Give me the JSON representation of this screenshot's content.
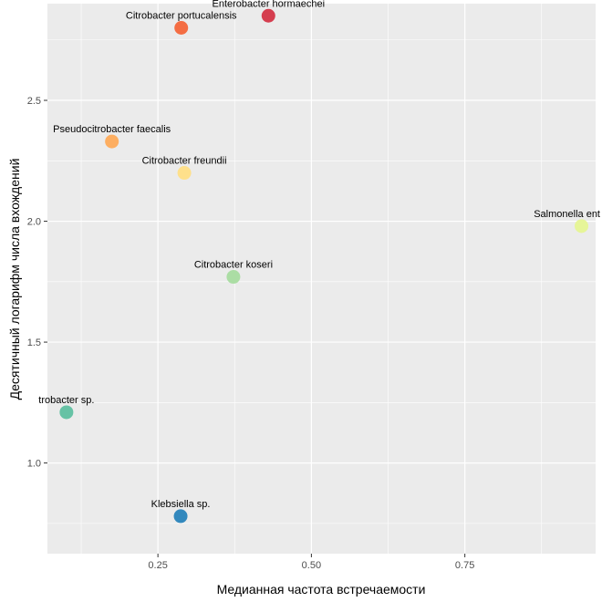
{
  "chart_data": {
    "type": "scatter",
    "xlabel": "Медианная частота встречаемости",
    "ylabel": "Десятичный логарифм числа вхождений",
    "xlim": [
      0.07,
      0.963
    ],
    "ylim": [
      0.625,
      2.9
    ],
    "x_ticks": [
      {
        "value": 0.25,
        "label": "0.25"
      },
      {
        "value": 0.5,
        "label": "0.50"
      },
      {
        "value": 0.75,
        "label": "0.75"
      }
    ],
    "y_ticks": [
      {
        "value": 1.0,
        "label": "1.0"
      },
      {
        "value": 1.5,
        "label": "1.5"
      },
      {
        "value": 2.0,
        "label": "2.0"
      },
      {
        "value": 2.5,
        "label": "2.5"
      }
    ],
    "grid": true,
    "legend": "none",
    "points": [
      {
        "label": "Enterobacter hormaechei",
        "x": 0.43,
        "y": 2.85,
        "color": "#d53e4f"
      },
      {
        "label": "Citrobacter portucalensis",
        "x": 0.288,
        "y": 2.8,
        "color": "#f46d43"
      },
      {
        "label": "Pseudocitrobacter faecalis",
        "x": 0.175,
        "y": 2.33,
        "color": "#fdae61"
      },
      {
        "label": "Citrobacter freundii",
        "x": 0.293,
        "y": 2.2,
        "color": "#fee08b"
      },
      {
        "label": "Salmonella ent",
        "x": 0.94,
        "y": 1.98,
        "color": "#e6f598"
      },
      {
        "label": "Citrobacter koseri",
        "x": 0.373,
        "y": 1.77,
        "color": "#abdda4"
      },
      {
        "label": "trobacter sp.",
        "x": 0.101,
        "y": 1.21,
        "color": "#66c2a5"
      },
      {
        "label": "Klebsiella sp.",
        "x": 0.287,
        "y": 0.78,
        "color": "#3288bd"
      }
    ]
  }
}
